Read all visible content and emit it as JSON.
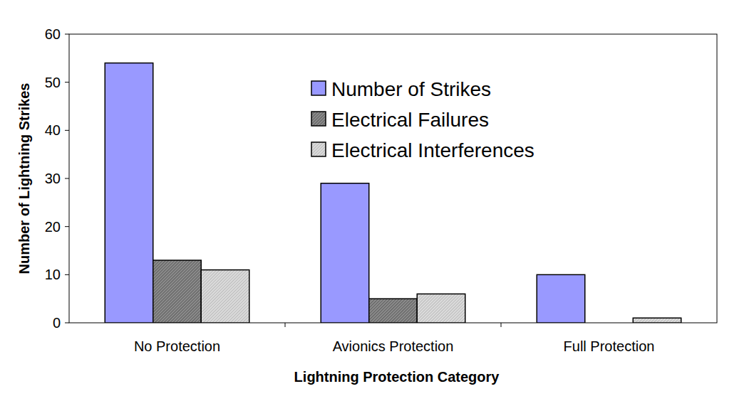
{
  "chart_data": {
    "type": "bar",
    "categories": [
      "No Protection",
      "Avionics Protection",
      "Full Protection"
    ],
    "series": [
      {
        "name": "Number of Strikes",
        "color": "#9999ff",
        "values": [
          54,
          29,
          10
        ]
      },
      {
        "name": "Electrical Failures",
        "color": "#8c8c8c",
        "values": [
          13,
          5,
          0
        ]
      },
      {
        "name": "Electrical Interferences",
        "color": "#dcdcdc",
        "values": [
          11,
          6,
          1
        ]
      }
    ],
    "x_label": "Lightning Protection Category",
    "y_label": "Number of Lightning Strikes",
    "ylim": [
      0,
      60
    ],
    "yticks": [
      0,
      10,
      20,
      30,
      40,
      50,
      60
    ],
    "grid": false,
    "legend": "top"
  }
}
